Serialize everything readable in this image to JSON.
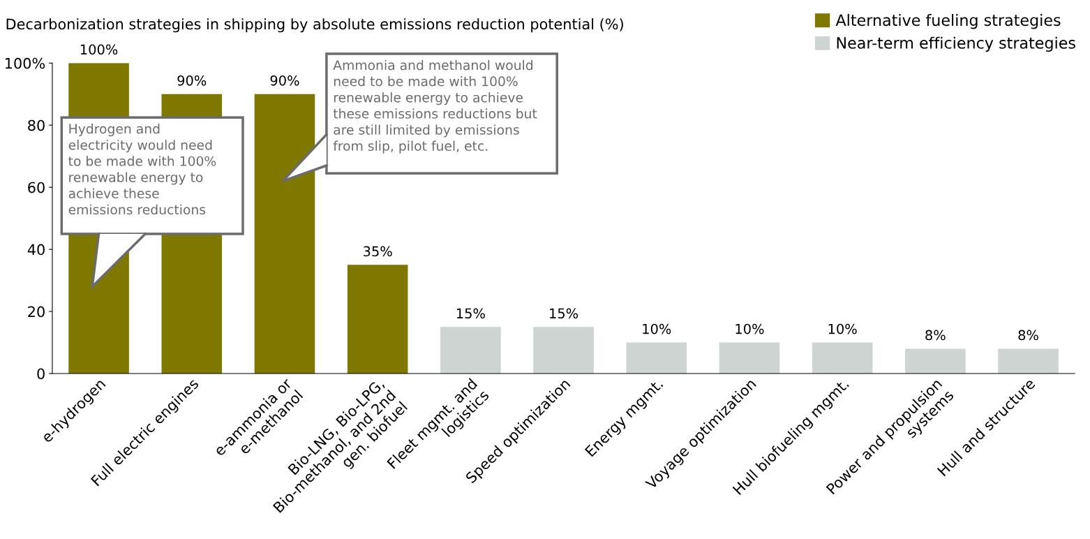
{
  "chart_data": {
    "type": "bar",
    "title": "Decarbonization strategies in shipping by absolute emissions reduction potential (%)",
    "categories": [
      "e-hydrogen",
      "Full electric engines",
      "e-ammonia or\ne-methanol",
      "Bio-LNG, Bio-LPG,\nBio-methanol, and 2nd\ngen. biofuel",
      "Fleet mgmt. and\nlogistics",
      "Speed optimization",
      "Energy mgmt.",
      "Voyage optimization",
      "Hull biofueling mgmt.",
      "Power and propulsion\nsystems",
      "Hull and structure"
    ],
    "series": [
      {
        "name": "Alternative fueling strategies",
        "color": "#7f7800",
        "values": [
          100,
          90,
          90,
          35,
          null,
          null,
          null,
          null,
          null,
          null,
          null
        ],
        "value_labels": [
          "100%",
          "90%",
          "90%",
          "35%",
          null,
          null,
          null,
          null,
          null,
          null,
          null
        ]
      },
      {
        "name": "Near-term efficiency strategies",
        "color": "#cdd4d2",
        "values": [
          null,
          null,
          null,
          null,
          15,
          15,
          10,
          10,
          10,
          8,
          8
        ],
        "value_labels": [
          null,
          null,
          null,
          null,
          "15%",
          "15%",
          "10%",
          "10%",
          "10%",
          "8%",
          "8%"
        ]
      }
    ],
    "ylim": [
      0,
      100
    ],
    "yticks": [
      0,
      20,
      40,
      60,
      80,
      {
        "value": 100,
        "label": "100%"
      }
    ],
    "grid": false,
    "legend": "top right",
    "annotations": [
      "Hydrogen and\nelectricity would need\nto be made with 100%\nrenewable energy to\nachieve these\nemissions reductions",
      "Ammonia and methanol would\nneed to be made with 100%\nrenewable energy to achieve\nthese emissions reductions but\nare still limited by emissions\nfrom slip, pilot fuel, etc."
    ]
  }
}
